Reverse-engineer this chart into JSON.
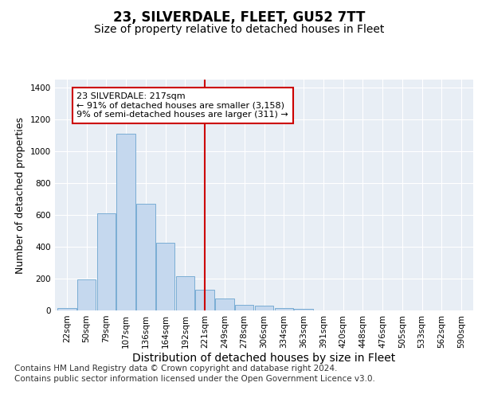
{
  "title": "23, SILVERDALE, FLEET, GU52 7TT",
  "subtitle": "Size of property relative to detached houses in Fleet",
  "xlabel": "Distribution of detached houses by size in Fleet",
  "ylabel": "Number of detached properties",
  "categories": [
    "22sqm",
    "50sqm",
    "79sqm",
    "107sqm",
    "136sqm",
    "164sqm",
    "192sqm",
    "221sqm",
    "249sqm",
    "278sqm",
    "306sqm",
    "334sqm",
    "363sqm",
    "391sqm",
    "420sqm",
    "448sqm",
    "476sqm",
    "505sqm",
    "533sqm",
    "562sqm",
    "590sqm"
  ],
  "values": [
    15,
    195,
    610,
    1110,
    670,
    425,
    215,
    130,
    75,
    35,
    28,
    13,
    10,
    0,
    0,
    0,
    0,
    0,
    0,
    0,
    0
  ],
  "bar_color": "#c5d8ee",
  "bar_edge_color": "#7aadd4",
  "vline_x_index": 7,
  "vline_color": "#cc0000",
  "annotation_line1": "23 SILVERDALE: 217sqm",
  "annotation_line2": "← 91% of detached houses are smaller (3,158)",
  "annotation_line3": "9% of semi-detached houses are larger (311) →",
  "annotation_box_facecolor": "#ffffff",
  "annotation_box_edgecolor": "#cc0000",
  "ylim": [
    0,
    1450
  ],
  "yticks": [
    0,
    200,
    400,
    600,
    800,
    1000,
    1200,
    1400
  ],
  "plot_bg_color": "#e8eef5",
  "grid_color": "#ffffff",
  "footer_line1": "Contains HM Land Registry data © Crown copyright and database right 2024.",
  "footer_line2": "Contains public sector information licensed under the Open Government Licence v3.0.",
  "title_fontsize": 12,
  "subtitle_fontsize": 10,
  "ylabel_fontsize": 9,
  "xlabel_fontsize": 10,
  "tick_fontsize": 7.5,
  "annotation_fontsize": 8,
  "footer_fontsize": 7.5
}
